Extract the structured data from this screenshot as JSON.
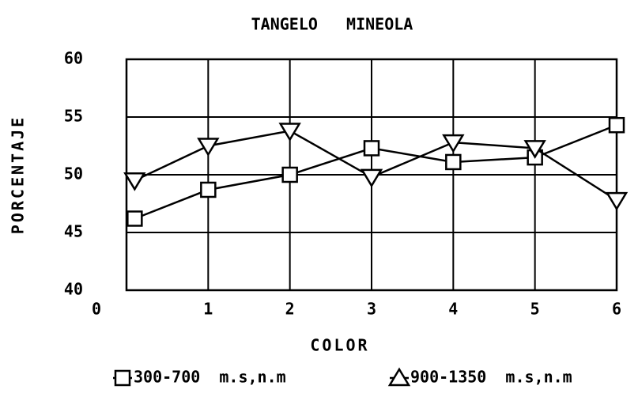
{
  "chart_data": {
    "type": "line",
    "title": "TANGELO   MINEOLA",
    "xlabel": "COLOR",
    "ylabel": "PORCENTAJE",
    "x": [
      0.1,
      1,
      2,
      3,
      4,
      5,
      6
    ],
    "series": [
      {
        "name": "300-700  m.s,n.m",
        "color": "#000000",
        "marker": "square",
        "values": [
          46.2,
          48.7,
          50.0,
          52.3,
          51.1,
          51.5,
          54.3
        ]
      },
      {
        "name": "900-1350  m.s,n.m",
        "color": "#000000",
        "marker": "triangle",
        "values": [
          49.5,
          52.5,
          53.8,
          49.8,
          52.8,
          52.3,
          47.8
        ]
      }
    ],
    "xlim": [
      0,
      6
    ],
    "xticks": [
      0,
      1,
      2,
      3,
      4,
      5,
      6
    ],
    "ylim": [
      40,
      60
    ],
    "yticks": [
      40,
      45,
      50,
      55,
      60
    ],
    "grid": true
  }
}
